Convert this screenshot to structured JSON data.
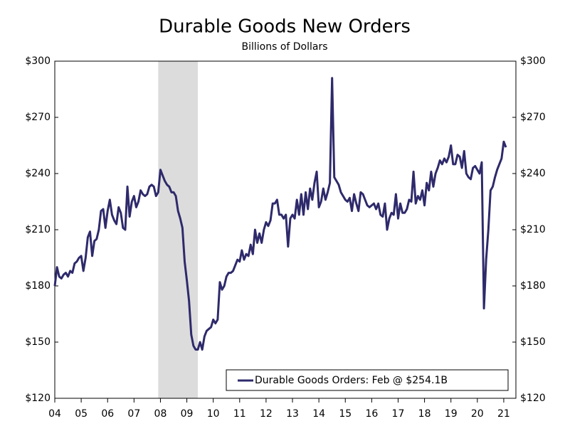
{
  "chart_data": {
    "type": "line",
    "title": "Durable Goods New Orders",
    "subtitle": "Billions of Dollars",
    "x": [
      2004,
      2004.083,
      2004.167,
      2004.25,
      2004.333,
      2004.417,
      2004.5,
      2004.583,
      2004.667,
      2004.75,
      2004.833,
      2004.917,
      2005,
      2005.083,
      2005.167,
      2005.25,
      2005.333,
      2005.417,
      2005.5,
      2005.583,
      2005.667,
      2005.75,
      2005.833,
      2005.917,
      2006,
      2006.083,
      2006.167,
      2006.25,
      2006.333,
      2006.417,
      2006.5,
      2006.583,
      2006.667,
      2006.75,
      2006.833,
      2006.917,
      2007,
      2007.083,
      2007.167,
      2007.25,
      2007.333,
      2007.417,
      2007.5,
      2007.583,
      2007.667,
      2007.75,
      2007.833,
      2007.917,
      2008,
      2008.083,
      2008.167,
      2008.25,
      2008.333,
      2008.417,
      2008.5,
      2008.583,
      2008.667,
      2008.75,
      2008.833,
      2008.917,
      2009,
      2009.083,
      2009.167,
      2009.25,
      2009.333,
      2009.417,
      2009.5,
      2009.583,
      2009.667,
      2009.75,
      2009.833,
      2009.917,
      2010,
      2010.083,
      2010.167,
      2010.25,
      2010.333,
      2010.417,
      2010.5,
      2010.583,
      2010.667,
      2010.75,
      2010.833,
      2010.917,
      2011,
      2011.083,
      2011.167,
      2011.25,
      2011.333,
      2011.417,
      2011.5,
      2011.583,
      2011.667,
      2011.75,
      2011.833,
      2011.917,
      2012,
      2012.083,
      2012.167,
      2012.25,
      2012.333,
      2012.417,
      2012.5,
      2012.583,
      2012.667,
      2012.75,
      2012.833,
      2012.917,
      2013,
      2013.083,
      2013.167,
      2013.25,
      2013.333,
      2013.417,
      2013.5,
      2013.583,
      2013.667,
      2013.75,
      2013.833,
      2013.917,
      2014,
      2014.083,
      2014.167,
      2014.25,
      2014.333,
      2014.417,
      2014.5,
      2014.583,
      2014.667,
      2014.75,
      2014.833,
      2014.917,
      2015,
      2015.083,
      2015.167,
      2015.25,
      2015.333,
      2015.417,
      2015.5,
      2015.583,
      2015.667,
      2015.75,
      2015.833,
      2015.917,
      2016,
      2016.083,
      2016.167,
      2016.25,
      2016.333,
      2016.417,
      2016.5,
      2016.583,
      2016.667,
      2016.75,
      2016.833,
      2016.917,
      2017,
      2017.083,
      2017.167,
      2017.25,
      2017.333,
      2017.417,
      2017.5,
      2017.583,
      2017.667,
      2017.75,
      2017.833,
      2017.917,
      2018,
      2018.083,
      2018.167,
      2018.25,
      2018.333,
      2018.417,
      2018.5,
      2018.583,
      2018.667,
      2018.75,
      2018.833,
      2018.917,
      2019,
      2019.083,
      2019.167,
      2019.25,
      2019.333,
      2019.417,
      2019.5,
      2019.583,
      2019.667,
      2019.75,
      2019.833,
      2019.917,
      2020,
      2020.083,
      2020.167,
      2020.25,
      2020.333,
      2020.417,
      2020.5,
      2020.583,
      2020.667,
      2020.75,
      2020.833,
      2020.917,
      2021,
      2021.083
    ],
    "series": [
      {
        "name": "Durable Goods Orders: Feb @ $254.1B",
        "color": "#2e2a6b",
        "values": [
          180,
          190,
          185,
          184,
          186,
          187,
          185,
          188,
          187,
          192,
          193,
          195,
          196,
          188,
          195,
          206,
          209,
          196,
          204,
          205,
          210,
          220,
          221,
          211,
          220,
          226,
          218,
          215,
          213,
          222,
          219,
          211,
          210,
          233,
          217,
          225,
          228,
          222,
          225,
          231,
          229,
          228,
          229,
          233,
          234,
          233,
          228,
          230,
          242,
          239,
          236,
          234,
          233,
          230,
          230,
          228,
          220,
          216,
          211,
          193,
          183,
          172,
          154,
          148,
          146,
          146,
          150,
          146,
          153,
          156,
          157,
          158,
          162,
          160,
          162,
          182,
          178,
          180,
          185,
          187,
          187,
          188,
          191,
          194,
          193,
          199,
          194,
          197,
          196,
          202,
          197,
          210,
          203,
          208,
          203,
          210,
          214,
          212,
          215,
          224,
          224,
          226,
          218,
          218,
          216,
          218,
          201,
          216,
          218,
          216,
          226,
          218,
          229,
          218,
          230,
          221,
          232,
          226,
          235,
          241,
          222,
          225,
          232,
          226,
          230,
          235,
          291,
          238,
          236,
          234,
          230,
          228,
          226,
          225,
          227,
          220,
          229,
          224,
          220,
          230,
          229,
          226,
          223,
          222,
          223,
          224,
          221,
          224,
          218,
          217,
          224,
          210,
          216,
          219,
          218,
          229,
          216,
          224,
          219,
          219,
          221,
          226,
          225,
          241,
          224,
          228,
          226,
          231,
          223,
          235,
          231,
          241,
          233,
          240,
          243,
          247,
          245,
          248,
          246,
          249,
          255,
          245,
          245,
          250,
          249,
          243,
          252,
          240,
          238,
          237,
          243,
          244,
          242,
          240,
          246,
          168,
          194,
          210,
          231,
          233,
          238,
          242,
          245,
          248,
          257,
          254
        ]
      }
    ],
    "xlim": [
      2004,
      2021.46
    ],
    "xticks": [
      {
        "value": 2004,
        "label": "04"
      },
      {
        "value": 2005,
        "label": "05"
      },
      {
        "value": 2006,
        "label": "06"
      },
      {
        "value": 2007,
        "label": "07"
      },
      {
        "value": 2008,
        "label": "08"
      },
      {
        "value": 2009,
        "label": "09"
      },
      {
        "value": 2010,
        "label": "10"
      },
      {
        "value": 2011,
        "label": "11"
      },
      {
        "value": 2012,
        "label": "12"
      },
      {
        "value": 2013,
        "label": "13"
      },
      {
        "value": 2014,
        "label": "14"
      },
      {
        "value": 2015,
        "label": "15"
      },
      {
        "value": 2016,
        "label": "16"
      },
      {
        "value": 2017,
        "label": "17"
      },
      {
        "value": 2018,
        "label": "18"
      },
      {
        "value": 2019,
        "label": "19"
      },
      {
        "value": 2020,
        "label": "20"
      },
      {
        "value": 2021,
        "label": "21"
      }
    ],
    "ylim": [
      120,
      300
    ],
    "yticks": [
      {
        "value": 120,
        "label": "$120"
      },
      {
        "value": 150,
        "label": "$150"
      },
      {
        "value": 180,
        "label": "$180"
      },
      {
        "value": 210,
        "label": "$210"
      },
      {
        "value": 240,
        "label": "$240"
      },
      {
        "value": 270,
        "label": "$270"
      },
      {
        "value": 300,
        "label": "$300"
      }
    ],
    "y2lim": [
      120,
      300
    ],
    "y2ticks": [
      {
        "value": 120,
        "label": "$120"
      },
      {
        "value": 150,
        "label": "$150"
      },
      {
        "value": 180,
        "label": "$180"
      },
      {
        "value": 210,
        "label": "$210"
      },
      {
        "value": 240,
        "label": "$240"
      },
      {
        "value": 270,
        "label": "$270"
      },
      {
        "value": 300,
        "label": "$300"
      }
    ],
    "shaded_regions": [
      {
        "start": 2007.917,
        "end": 2009.417,
        "color": "#dcdcdc"
      }
    ],
    "grid": false,
    "legend": "lower right"
  }
}
